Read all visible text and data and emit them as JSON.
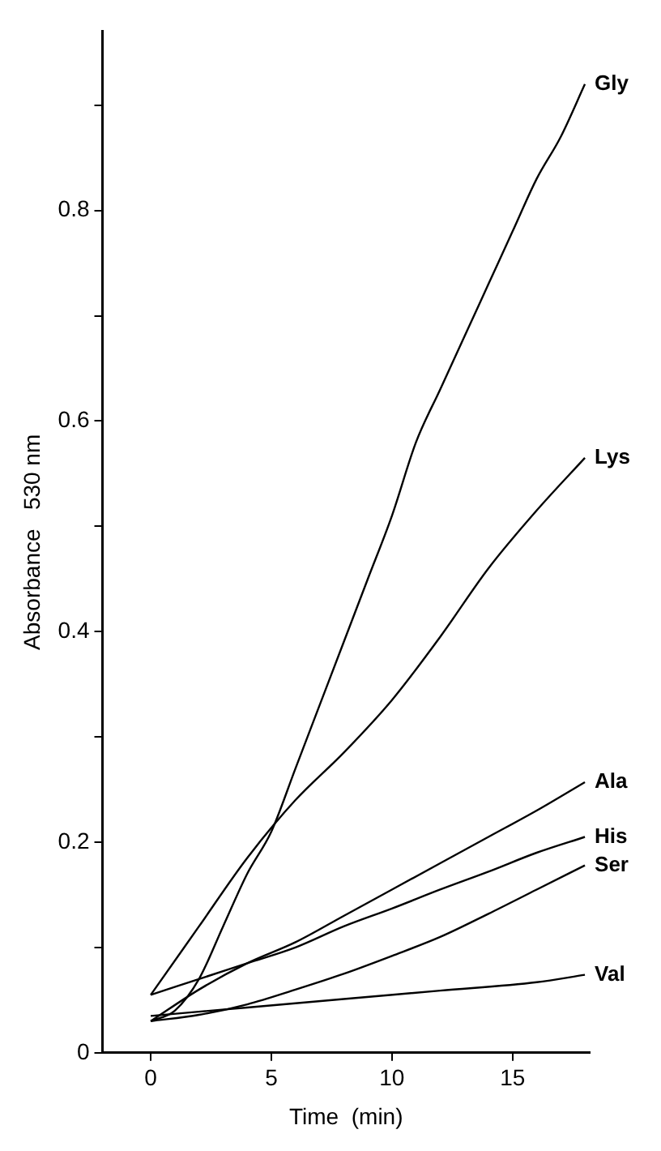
{
  "chart_data": {
    "type": "line",
    "xlabel": "Time  (min)",
    "ylabel": "Absorbance   530 nm",
    "xlim": [
      -2,
      18.2
    ],
    "xticks": [
      0,
      5,
      10,
      15
    ],
    "ylim": [
      0,
      0.97
    ],
    "yticks": [
      0,
      {
        "value": 0.1,
        "label": null
      },
      0.2,
      {
        "value": 0.3,
        "label": null
      },
      0.4,
      {
        "value": 0.5,
        "label": null
      },
      0.6,
      {
        "value": 0.7,
        "label": null
      },
      0.8,
      {
        "value": 0.9,
        "label": null
      }
    ],
    "grid": false,
    "legend": false,
    "marker": "none",
    "line_style": "solid",
    "x": [
      0,
      2,
      4,
      6,
      8,
      10,
      12,
      14,
      16,
      18
    ],
    "series": [
      {
        "name": "Gly",
        "color": "#000000",
        "x": [
          0,
          1,
          2,
          3,
          4,
          5,
          6,
          7,
          8,
          9,
          10,
          11,
          12,
          13,
          14,
          15,
          16,
          17,
          18
        ],
        "values": [
          0.03,
          0.04,
          0.07,
          0.12,
          0.17,
          0.21,
          0.27,
          0.33,
          0.39,
          0.45,
          0.51,
          0.58,
          0.63,
          0.68,
          0.73,
          0.78,
          0.83,
          0.87,
          0.92
        ]
      },
      {
        "name": "Lys",
        "color": "#000000",
        "values": [
          0.055,
          0.12,
          0.185,
          0.24,
          0.285,
          0.335,
          0.395,
          0.46,
          0.515,
          0.565
        ]
      },
      {
        "name": "Ala",
        "color": "#000000",
        "values": [
          0.03,
          0.06,
          0.085,
          0.105,
          0.13,
          0.155,
          0.18,
          0.205,
          0.23,
          0.257
        ]
      },
      {
        "name": "His",
        "color": "#000000",
        "values": [
          0.055,
          0.07,
          0.085,
          0.1,
          0.12,
          0.137,
          0.155,
          0.172,
          0.19,
          0.205
        ]
      },
      {
        "name": "Ser",
        "color": "#000000",
        "values": [
          0.03,
          0.036,
          0.046,
          0.06,
          0.075,
          0.092,
          0.11,
          0.132,
          0.155,
          0.178
        ]
      },
      {
        "name": "Val",
        "color": "#000000",
        "x": [
          0,
          4,
          8,
          12,
          16,
          18
        ],
        "values": [
          0.035,
          0.043,
          0.051,
          0.059,
          0.067,
          0.074
        ]
      }
    ]
  }
}
